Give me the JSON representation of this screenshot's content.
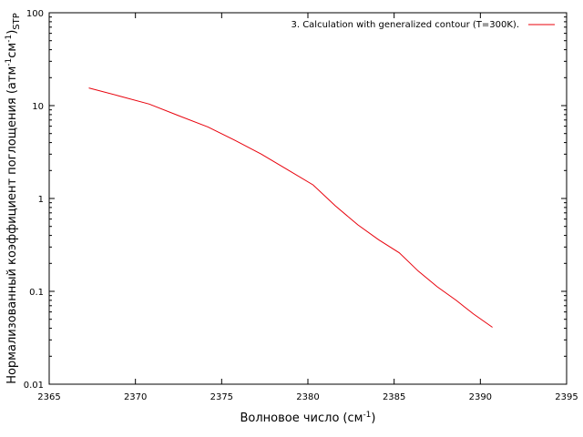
{
  "chart_data": {
    "type": "line",
    "xlabel": "Волновое число",
    "xlabel_unit": "(см",
    "xlabel_unit_sup": "-1",
    "xlabel_unit_close": ")",
    "ylabel_main": "Нормализованный коэффициент поглощения (атм",
    "ylabel_sup1": "-1",
    "ylabel_mid": "см",
    "ylabel_sup2": "-1",
    "ylabel_close": ")",
    "ylabel_sub": "STP",
    "xlim": [
      2365,
      2395
    ],
    "ylim": [
      0.01,
      100
    ],
    "yscale": "log",
    "grid": false,
    "legend_position": "top-right",
    "x_ticks": [
      2365,
      2370,
      2375,
      2380,
      2385,
      2390,
      2395
    ],
    "x_tick_labels": [
      "2365",
      "2370",
      "2375",
      "2380",
      "2385",
      "2390",
      "2395"
    ],
    "y_ticks": [
      0.01,
      0.1,
      1,
      10,
      100
    ],
    "y_tick_labels": [
      "0.01",
      "0.1",
      "1",
      "10",
      "100"
    ],
    "series": [
      {
        "name": "3. Calculation with generalized contour (T=300K).",
        "color": "#e8000b",
        "x": [
          2367.3,
          2369.0,
          2370.8,
          2372.5,
          2374.2,
          2375.8,
          2377.3,
          2378.8,
          2380.3,
          2381.6,
          2382.9,
          2384.1,
          2385.3,
          2386.4,
          2387.5,
          2388.6,
          2389.6,
          2390.7
        ],
        "y": [
          15.5,
          12.8,
          10.4,
          7.8,
          5.9,
          4.2,
          3.0,
          2.05,
          1.4,
          0.83,
          0.52,
          0.36,
          0.26,
          0.165,
          0.112,
          0.08,
          0.057,
          0.041
        ]
      }
    ]
  }
}
